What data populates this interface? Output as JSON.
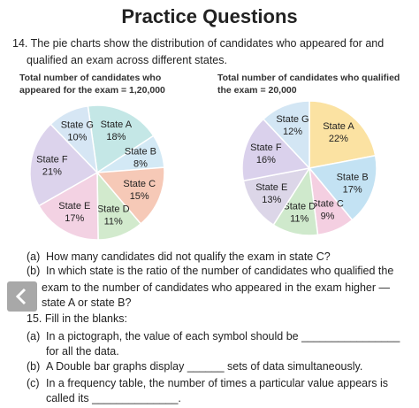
{
  "header": {
    "title": "Practice Questions"
  },
  "question_14": {
    "lines": [
      "14. The pie charts show the distribution of candidates who appeared for and",
      "qualified an exam across different states."
    ]
  },
  "pies": [
    {
      "caption": [
        "Total number of candidates who",
        "appeared for the exam = 1,20,000"
      ],
      "slices": [
        {
          "name": "State A",
          "value": 18,
          "value_label": "18%",
          "color": "#c4e7e6"
        },
        {
          "name": "State B",
          "value": 8,
          "value_label": "8%",
          "color": "#d3e9f5"
        },
        {
          "name": "State C",
          "value": 15,
          "value_label": "15%",
          "color": "#f6c9b7"
        },
        {
          "name": "State D",
          "value": 11,
          "value_label": "11%",
          "color": "#d2eacd"
        },
        {
          "name": "State E",
          "value": 17,
          "value_label": "17%",
          "color": "#f3d2e3"
        },
        {
          "name": "State F",
          "value": 21,
          "value_label": "21%",
          "color": "#dcd3ec"
        },
        {
          "name": "State G",
          "value": 10,
          "value_label": "10%",
          "color": "#d6e6f4"
        }
      ]
    },
    {
      "caption": [
        "Total number of candidates who qualified",
        "the exam = 20,000"
      ],
      "slices": [
        {
          "name": "State A",
          "value": 22,
          "value_label": "22%",
          "color": "#fbe2a2"
        },
        {
          "name": "State B",
          "value": 17,
          "value_label": "17%",
          "color": "#c3e2f3"
        },
        {
          "name": "State C",
          "value": 9,
          "value_label": "9%",
          "color": "#f4cfe1"
        },
        {
          "name": "State D",
          "value": 11,
          "value_label": "11%",
          "color": "#cfe9cc"
        },
        {
          "name": "State E",
          "value": 13,
          "value_label": "13%",
          "color": "#dcd6e8"
        },
        {
          "name": "State F",
          "value": 16,
          "value_label": "16%",
          "color": "#dad1ec"
        },
        {
          "name": "State G",
          "value": 12,
          "value_label": "12%",
          "color": "#d3e6f4"
        }
      ]
    }
  ],
  "questions_14": [
    {
      "label": "(a)",
      "lines": [
        "How many candidates did not qualify the exam in state C?"
      ]
    },
    {
      "label": "(b)",
      "lines": [
        "In which state is the ratio of the number of candidates who qualified the",
        "exam to the number of candidates who appeared in the exam higher —",
        "state A or state B?"
      ]
    }
  ],
  "question_15": {
    "heading": "15. Fill in the blanks:",
    "items": [
      {
        "label": "(a)",
        "lines": [
          "In a pictograph, the value of each symbol should be ________________",
          "for all the data."
        ]
      },
      {
        "label": "(b)",
        "lines": [
          "A Double bar graphs display ______ sets of data simultaneously."
        ]
      },
      {
        "label": "(c)",
        "lines": [
          "In a frequency table, the number of times a particular value appears is",
          "called its ______________."
        ]
      }
    ]
  }
}
